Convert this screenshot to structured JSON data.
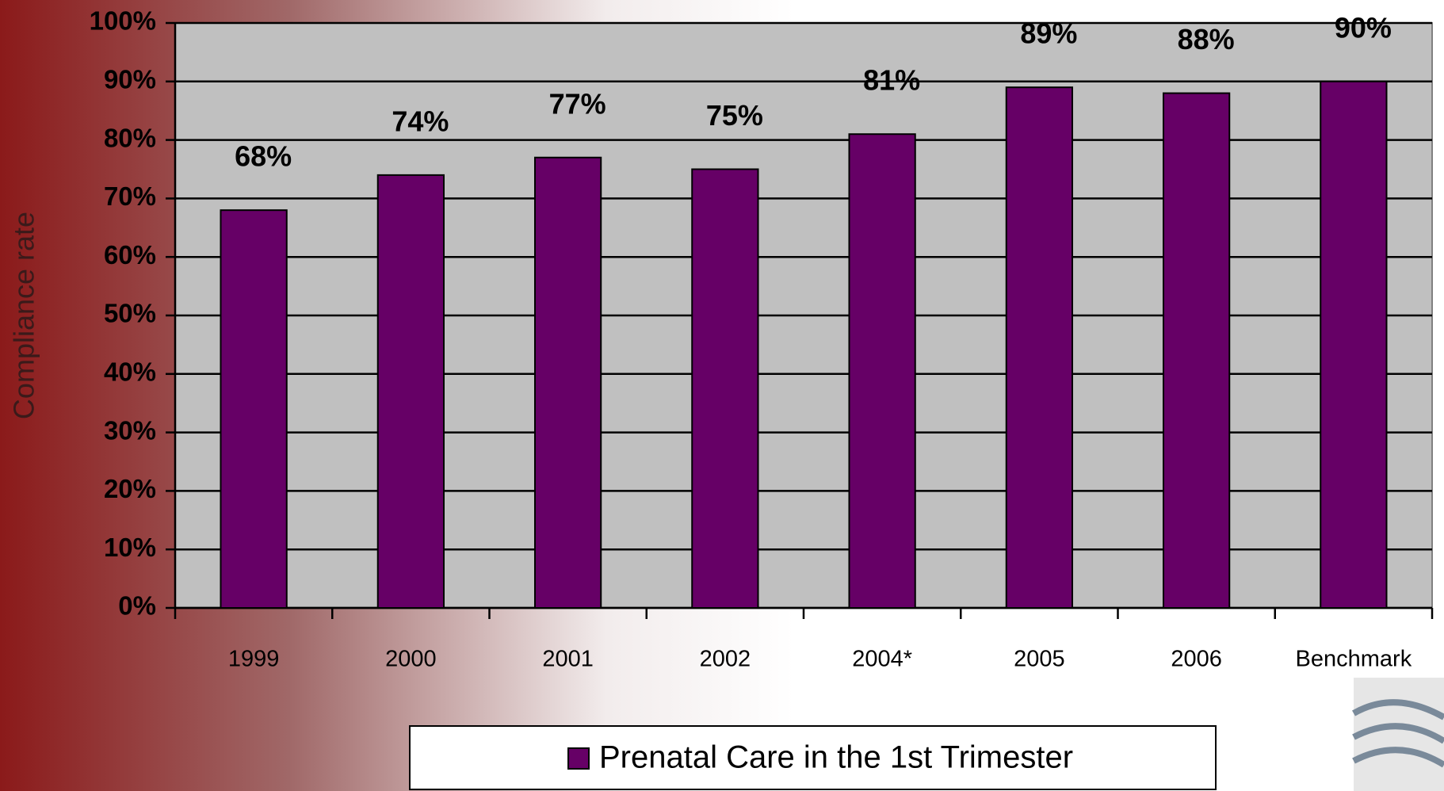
{
  "chart_data": {
    "type": "bar",
    "categories": [
      "1999",
      "2000",
      "2001",
      "2002",
      "2004*",
      "2005",
      "2006",
      "Benchmark"
    ],
    "series": [
      {
        "name": "Prenatal Care in the 1st Trimester",
        "color": "#660066",
        "values": [
          68,
          74,
          77,
          75,
          81,
          89,
          88,
          90
        ],
        "value_labels": [
          "68%",
          "74%",
          "77%",
          "75%",
          "81%",
          "89%",
          "88%",
          "90%"
        ]
      }
    ],
    "ylabel": "Compliance rate",
    "ylim": [
      0,
      100
    ],
    "yticks": [
      {
        "value": 0,
        "label": "0%"
      },
      {
        "value": 10,
        "label": "10%"
      },
      {
        "value": 20,
        "label": "20%"
      },
      {
        "value": 30,
        "label": "30%"
      },
      {
        "value": 40,
        "label": "40%"
      },
      {
        "value": 50,
        "label": "50%"
      },
      {
        "value": 60,
        "label": "60%"
      },
      {
        "value": 70,
        "label": "70%"
      },
      {
        "value": 80,
        "label": "80%"
      },
      {
        "value": 90,
        "label": "90%"
      },
      {
        "value": 100,
        "label": "100%"
      }
    ],
    "grid": true,
    "legend": "bottom"
  }
}
